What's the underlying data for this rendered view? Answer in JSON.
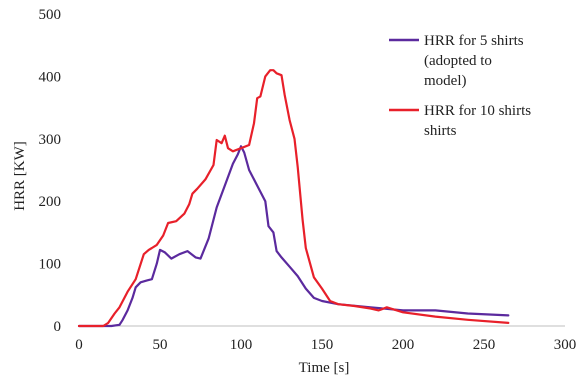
{
  "chart_data": {
    "type": "line",
    "title": "",
    "xlabel": "Time [s]",
    "ylabel": "HRR [KW]",
    "xlim": [
      0,
      300
    ],
    "ylim": [
      0,
      500
    ],
    "xticks": [
      "0",
      "50",
      "100",
      "150",
      "200",
      "250",
      "300"
    ],
    "yticks": [
      "0",
      "100",
      "200",
      "300",
      "400",
      "500"
    ],
    "grid": false,
    "legend_position": "top-right",
    "series": [
      {
        "name": "HRR for 5 shirts (adopted to model)",
        "legend_lines": [
          "HRR for 5 shirts",
          "(adopted to",
          "model)"
        ],
        "color": "#5b2a9e",
        "x": [
          0,
          20,
          25,
          27,
          30,
          33,
          35,
          38,
          42,
          45,
          48,
          50,
          53,
          57,
          62,
          67,
          72,
          75,
          80,
          85,
          90,
          95,
          98,
          100,
          102,
          105,
          110,
          115,
          117,
          120,
          122,
          125,
          130,
          135,
          140,
          145,
          150,
          160,
          180,
          200,
          220,
          240,
          265
        ],
        "y": [
          0,
          0,
          2,
          10,
          25,
          45,
          62,
          70,
          73,
          75,
          100,
          122,
          118,
          108,
          115,
          120,
          110,
          108,
          140,
          190,
          225,
          260,
          275,
          288,
          278,
          250,
          225,
          200,
          160,
          150,
          120,
          110,
          95,
          80,
          60,
          45,
          40,
          35,
          30,
          25,
          25,
          20,
          17
        ]
      },
      {
        "name": "HRR for 10 shirts",
        "legend_lines": [
          "HRR for 10 shirts",
          "shirts"
        ],
        "color": "#e8202a",
        "x": [
          0,
          15,
          18,
          22,
          25,
          30,
          35,
          40,
          43,
          45,
          48,
          52,
          55,
          60,
          65,
          68,
          70,
          73,
          78,
          83,
          85,
          88,
          90,
          92,
          95,
          100,
          105,
          108,
          110,
          112,
          115,
          118,
          120,
          122,
          125,
          127,
          130,
          133,
          135,
          138,
          140,
          145,
          150,
          155,
          160,
          170,
          180,
          185,
          190,
          200,
          220,
          240,
          265
        ],
        "y": [
          0,
          0,
          5,
          20,
          30,
          55,
          75,
          115,
          122,
          125,
          130,
          145,
          165,
          168,
          180,
          195,
          212,
          220,
          235,
          258,
          298,
          293,
          305,
          285,
          280,
          285,
          290,
          325,
          365,
          368,
          400,
          410,
          410,
          405,
          402,
          370,
          330,
          300,
          255,
          170,
          125,
          78,
          60,
          40,
          35,
          32,
          28,
          25,
          30,
          22,
          15,
          10,
          5
        ]
      }
    ]
  }
}
